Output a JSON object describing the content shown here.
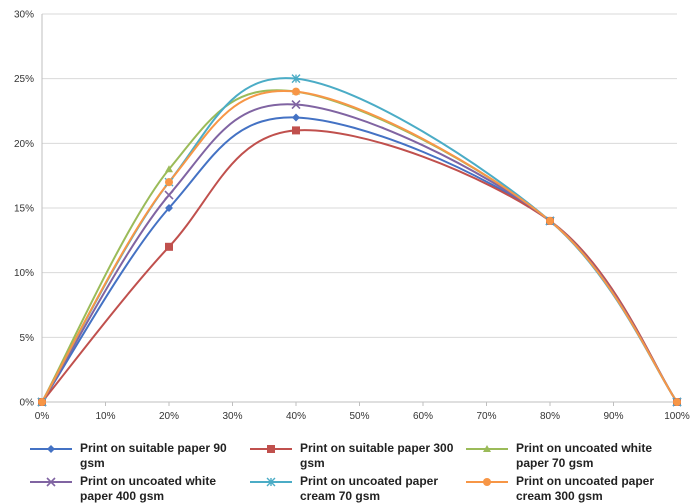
{
  "chart_data": {
    "type": "line",
    "x": [
      0,
      20,
      40,
      80,
      100
    ],
    "xticks": [
      "0%",
      "10%",
      "20%",
      "30%",
      "40%",
      "50%",
      "60%",
      "70%",
      "80%",
      "90%",
      "100%"
    ],
    "yticks": [
      "0%",
      "5%",
      "10%",
      "15%",
      "20%",
      "25%",
      "30%"
    ],
    "xlim": [
      0,
      100
    ],
    "ylim": [
      0,
      30
    ],
    "grid": "horizontal",
    "legend_position": "bottom",
    "series": [
      {
        "name": "Print on suitable paper 90 gsm",
        "values": [
          0,
          15,
          22,
          14,
          0
        ],
        "color": "#4472c4",
        "marker": "diamond"
      },
      {
        "name": "Print on suitable paper 300 gsm",
        "values": [
          0,
          12,
          21,
          14,
          0
        ],
        "color": "#c0504d",
        "marker": "square"
      },
      {
        "name": "Print on uncoated white paper 70 gsm",
        "values": [
          0,
          18,
          24,
          14,
          0
        ],
        "color": "#9bbb59",
        "marker": "triangle"
      },
      {
        "name": "Print on uncoated white paper 400 gsm",
        "values": [
          0,
          16,
          23,
          14,
          0
        ],
        "color": "#8064a2",
        "marker": "x"
      },
      {
        "name": "Print on uncoated paper cream 70 gsm",
        "values": [
          0,
          17,
          25,
          14,
          0
        ],
        "color": "#4bacc6",
        "marker": "star"
      },
      {
        "name": "Print on uncoated paper cream 300 gsm",
        "values": [
          0,
          17,
          24,
          14,
          0
        ],
        "color": "#f79646",
        "marker": "circle"
      }
    ]
  }
}
